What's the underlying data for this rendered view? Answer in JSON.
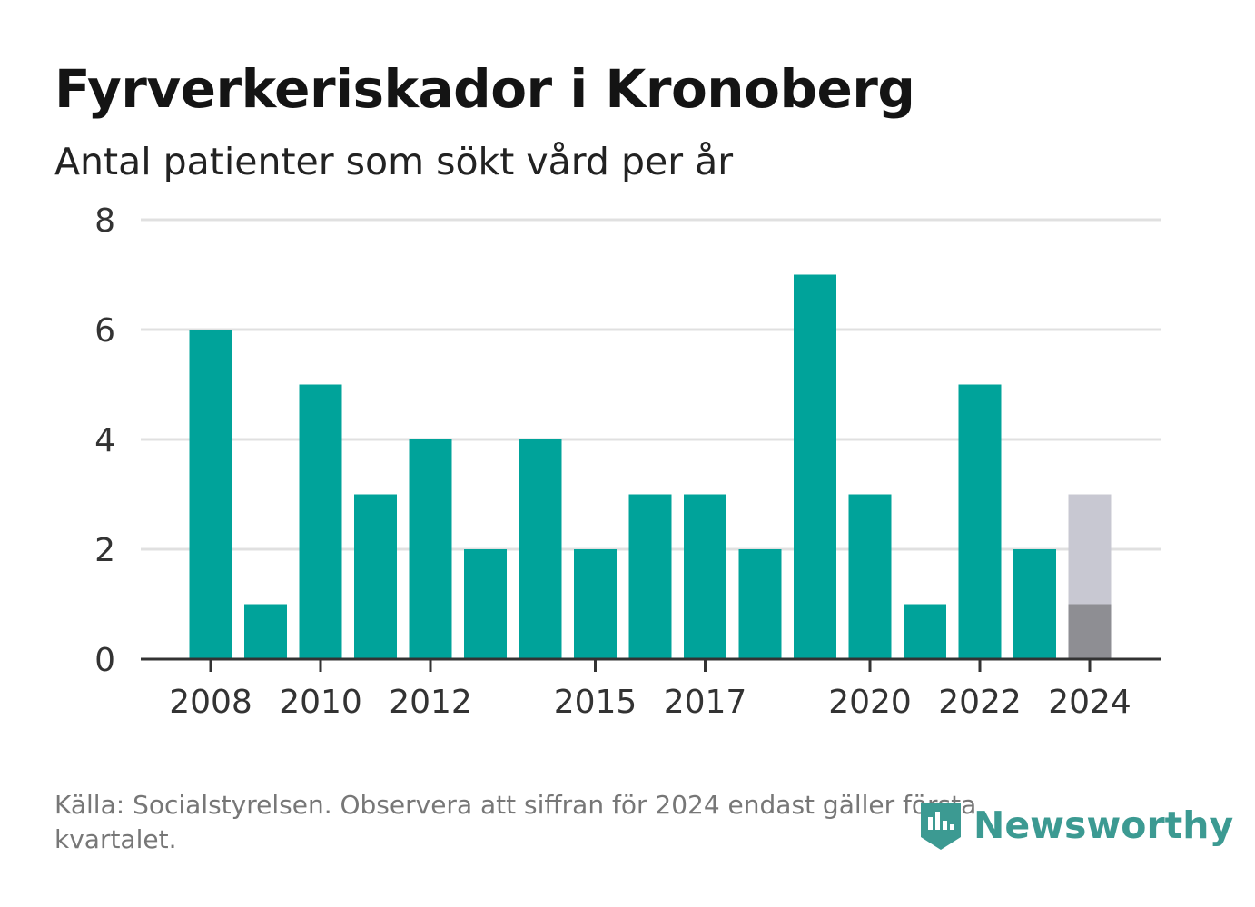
{
  "header": {
    "title": "Fyrverkeriskador i Kronoberg",
    "subtitle": "Antal patienter som sökt vård per år"
  },
  "footer": {
    "source": "Källa: Socialstyrelsen. Observera att siffran för 2024 endast gäller första kvartalet.",
    "brand": "Newsworthy"
  },
  "colors": {
    "bar": "#00a39a",
    "partial_bar": "#8e8e93",
    "partial_projection": "#c8c8d2",
    "grid": "#e0e0e0",
    "axis": "#333333",
    "brand": "#3c9a92"
  },
  "chart_data": {
    "type": "bar",
    "categories": [
      "2008",
      "2009",
      "2010",
      "2011",
      "2012",
      "2013",
      "2014",
      "2015",
      "2016",
      "2017",
      "2018",
      "2019",
      "2020",
      "2021",
      "2022",
      "2023",
      "2024"
    ],
    "series": [
      {
        "values": [
          6,
          1,
          5,
          3,
          4,
          2,
          4,
          2,
          3,
          3,
          2,
          7,
          3,
          1,
          5,
          2,
          1
        ]
      }
    ],
    "projection_2024": 3,
    "x_tick_labels": [
      "2008",
      "2010",
      "2012",
      "2015",
      "2017",
      "2020",
      "2022",
      "2024"
    ],
    "y_ticks": [
      0,
      2,
      4,
      6,
      8
    ],
    "ylim": [
      0,
      8
    ],
    "grid": true,
    "legend": "none"
  }
}
